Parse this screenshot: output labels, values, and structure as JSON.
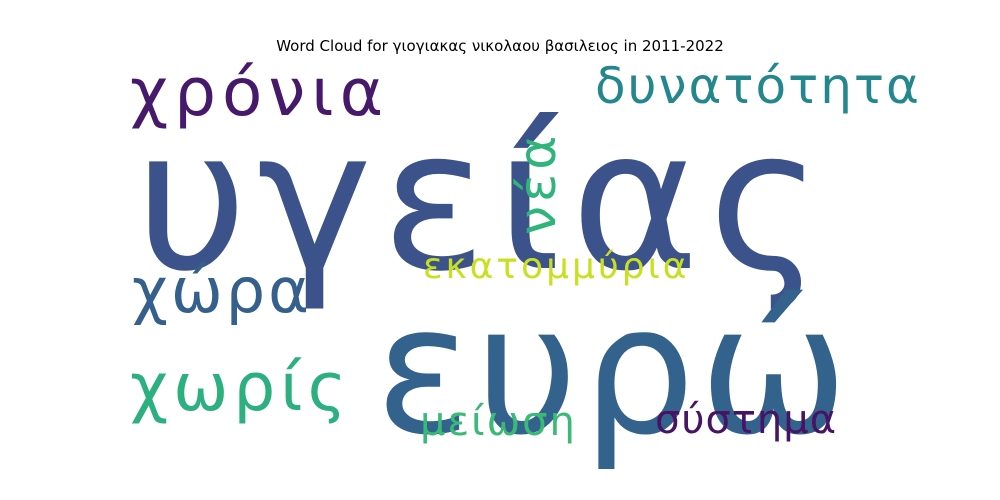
{
  "chart_data": {
    "type": "wordcloud",
    "title": "Word Cloud for γιογιακας νικολαου βασιλειος in 2011-2022",
    "words": [
      {
        "text": "υγείας",
        "weight": 1.0,
        "color": "#3b528b",
        "orientation": "horizontal"
      },
      {
        "text": "ευρώ",
        "weight": 0.72,
        "color": "#33638d",
        "orientation": "horizontal"
      },
      {
        "text": "χρόνια",
        "weight": 0.3,
        "color": "#46196b",
        "orientation": "horizontal"
      },
      {
        "text": "δυνατότητα",
        "weight": 0.24,
        "color": "#25878e",
        "orientation": "horizontal"
      },
      {
        "text": "νέα",
        "weight": 0.25,
        "color": "#2fb47c",
        "orientation": "vertical"
      },
      {
        "text": "χώρα",
        "weight": 0.29,
        "color": "#355f8d",
        "orientation": "horizontal"
      },
      {
        "text": "εκατομμύρια",
        "weight": 0.2,
        "color": "#c8e020",
        "orientation": "horizontal"
      },
      {
        "text": "χωρίς",
        "weight": 0.3,
        "color": "#2cb07f",
        "orientation": "horizontal"
      },
      {
        "text": "μείωση",
        "weight": 0.18,
        "color": "#3aba76",
        "orientation": "horizontal"
      },
      {
        "text": "σύστημα",
        "weight": 0.18,
        "color": "#471365",
        "orientation": "horizontal"
      }
    ]
  }
}
